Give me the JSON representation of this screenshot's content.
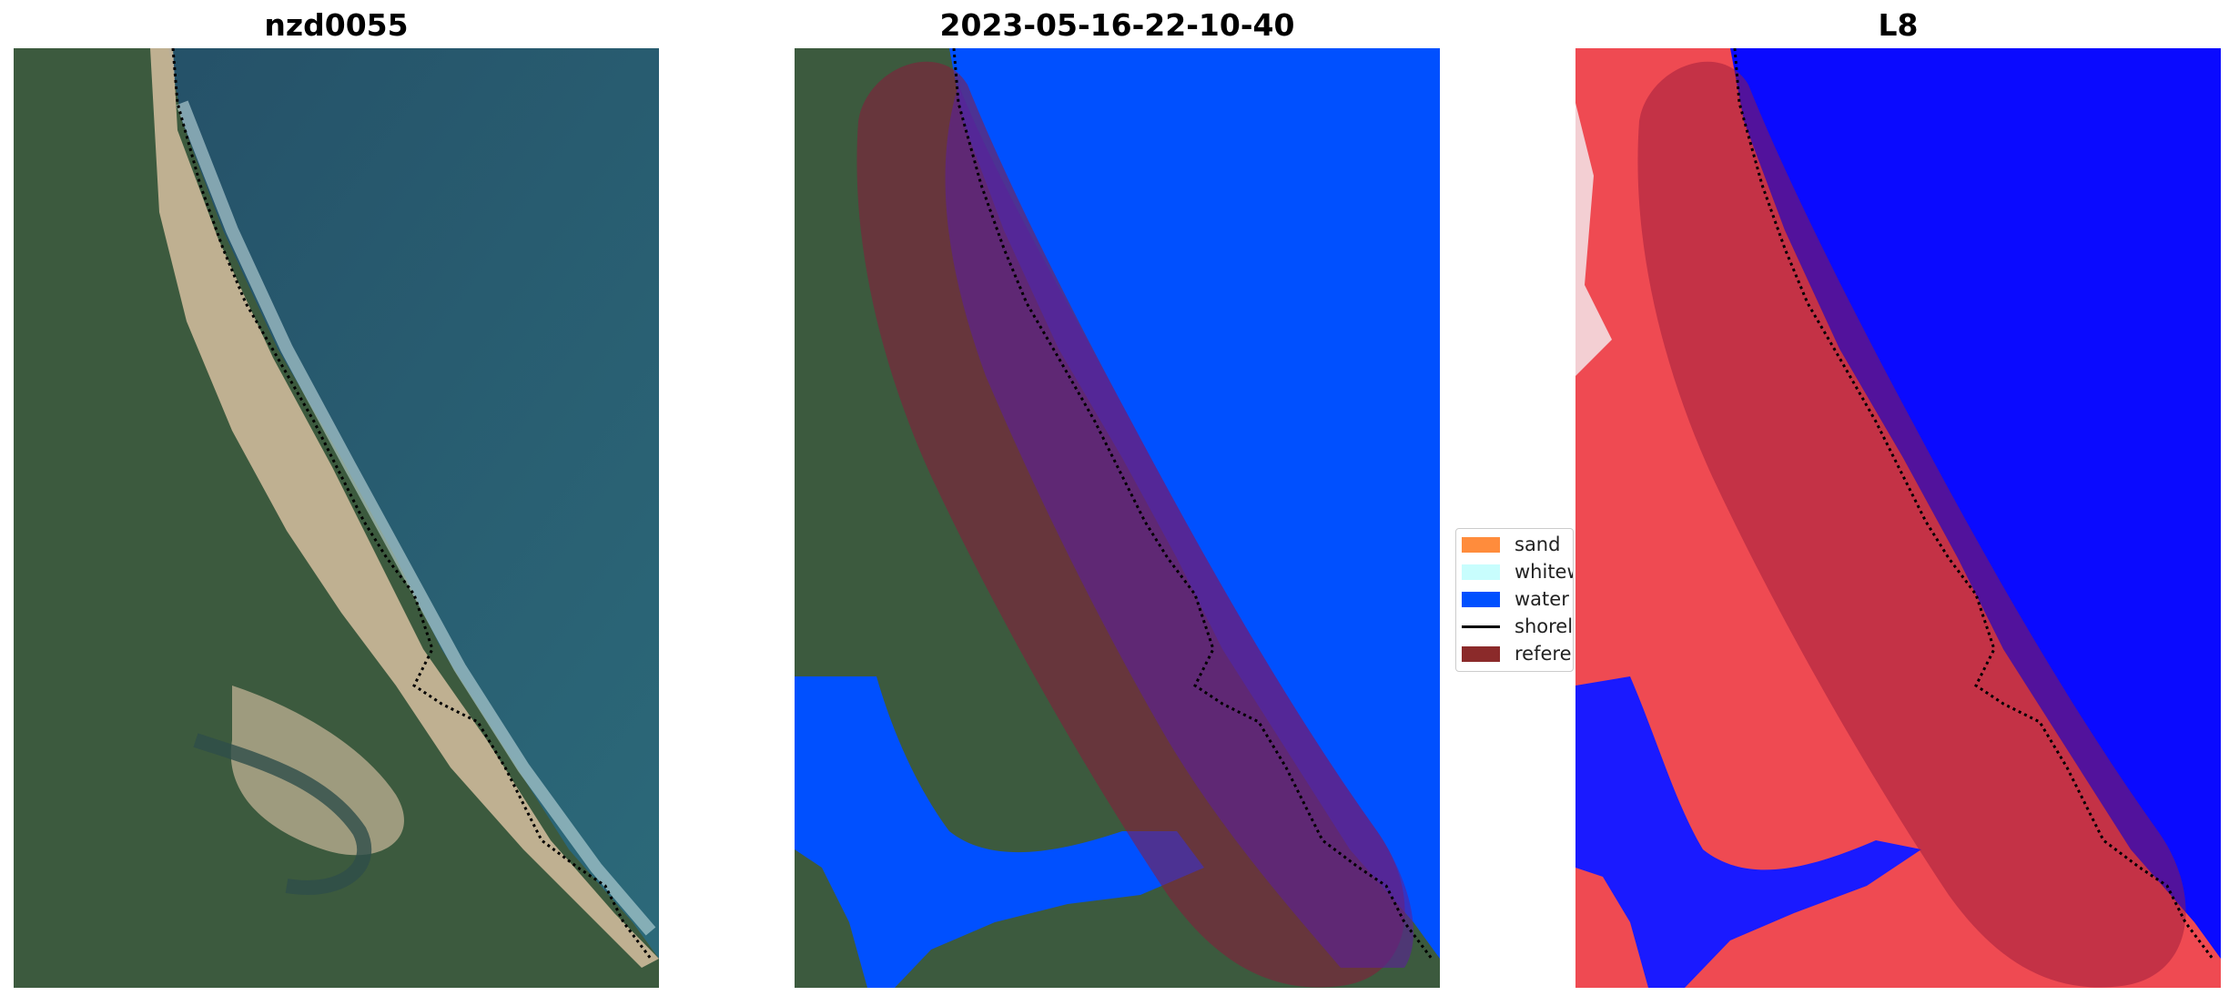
{
  "panels": [
    {
      "title": "nzd0055"
    },
    {
      "title": "2023-05-16-22-10-40"
    },
    {
      "title": "L8"
    }
  ],
  "legend": {
    "items": [
      {
        "label": "sand",
        "color": "#ff8c3c"
      },
      {
        "label": "whitewater",
        "color": "#c8fdfd"
      },
      {
        "label": "water",
        "color": "#0050ff"
      },
      {
        "label": "shoreline",
        "color": "#000000"
      },
      {
        "label": "reference shoreline buffer",
        "color": "#8b2a2a"
      }
    ]
  },
  "colors": {
    "ocean": "#2a5a72",
    "land": "#3a5a3c",
    "beach": "#d8c2a4",
    "water_class": "#0050ff",
    "buffer_overlay": "#8b1a3a",
    "index_positive": "#e8303a",
    "index_negative": "#0a0aff"
  }
}
